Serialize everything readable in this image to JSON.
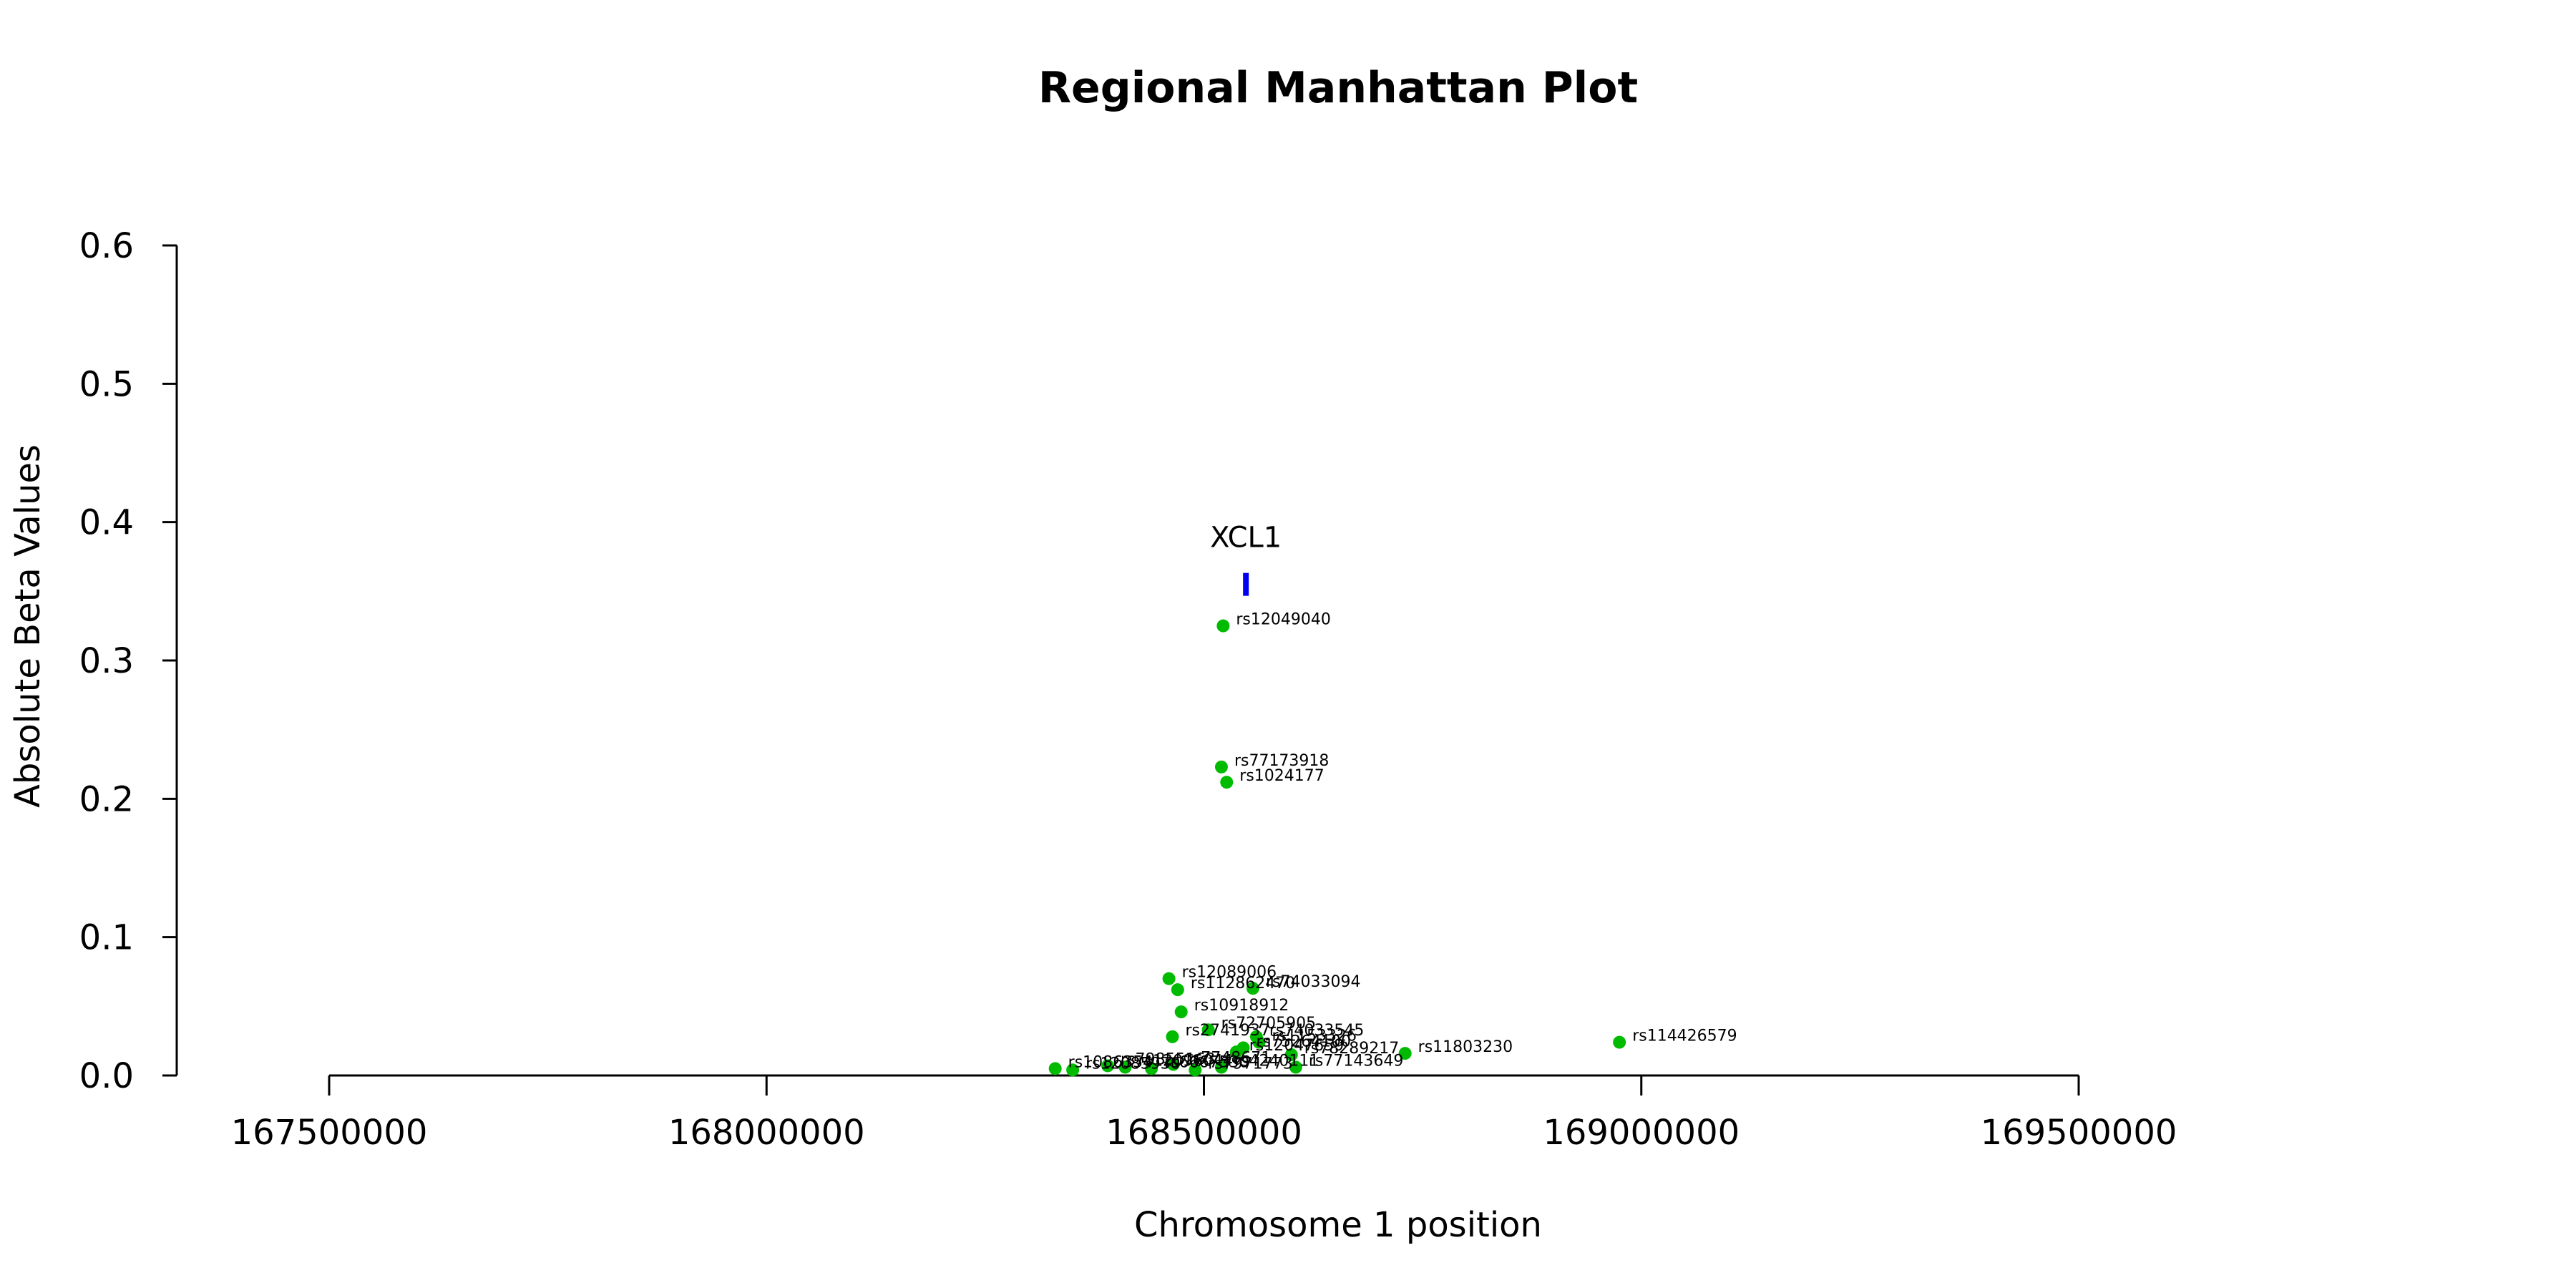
{
  "chart_data": {
    "type": "scatter",
    "title": "Regional Manhattan Plot",
    "xlabel": "Chromosome 1 position",
    "ylabel": "Absolute Beta Values",
    "xlim": [
      167500000,
      169500000
    ],
    "ylim": [
      0,
      0.6
    ],
    "xticks": [
      167500000,
      168000000,
      168500000,
      169000000,
      169500000
    ],
    "yticks": [
      0.0,
      0.1,
      0.2,
      0.3,
      0.4,
      0.5,
      0.6
    ],
    "point_color": "#00BB00",
    "gene_color": "#0000EE",
    "gene": {
      "name": "XCL1",
      "start": 168545000,
      "end": 168551000,
      "y": 0.355
    },
    "points": [
      {
        "x": 168522000,
        "y": 0.325,
        "label": "rs12049040"
      },
      {
        "x": 168520000,
        "y": 0.223,
        "label": "rs77173918"
      },
      {
        "x": 168526000,
        "y": 0.212,
        "label": "rs1024177"
      },
      {
        "x": 168460000,
        "y": 0.07,
        "label": "rs12089006"
      },
      {
        "x": 168470000,
        "y": 0.062,
        "label": "rs112862470"
      },
      {
        "x": 168556000,
        "y": 0.063,
        "label": "rs74033094"
      },
      {
        "x": 168474000,
        "y": 0.046,
        "label": "rs10918912"
      },
      {
        "x": 168464000,
        "y": 0.028,
        "label": "rs2741937"
      },
      {
        "x": 168505000,
        "y": 0.033,
        "label": "rs72705905"
      },
      {
        "x": 168560000,
        "y": 0.028,
        "label": "rs74033545"
      },
      {
        "x": 168563000,
        "y": 0.024,
        "label": "rs1153326"
      },
      {
        "x": 168545000,
        "y": 0.02,
        "label": "rs75264100"
      },
      {
        "x": 168537000,
        "y": 0.017,
        "label": "rs12047659"
      },
      {
        "x": 168600000,
        "y": 0.015,
        "label": "rs78289217"
      },
      {
        "x": 168730000,
        "y": 0.016,
        "label": "rs11803230"
      },
      {
        "x": 168975000,
        "y": 0.024,
        "label": "rs114426579"
      },
      {
        "x": 168605000,
        "y": 0.006,
        "label": "rs77143649"
      },
      {
        "x": 168330000,
        "y": 0.005,
        "label": "rs1086354"
      },
      {
        "x": 168350000,
        "y": 0.004,
        "label": "rs12085930"
      },
      {
        "x": 168390000,
        "y": 0.007,
        "label": "rs79855163"
      },
      {
        "x": 168410000,
        "y": 0.006,
        "label": "rs12096044"
      },
      {
        "x": 168440000,
        "y": 0.005,
        "label": "rs6667530"
      },
      {
        "x": 168490000,
        "y": 0.004,
        "label": "rs7971773"
      },
      {
        "x": 168520000,
        "y": 0.006,
        "label": "rs4240111"
      },
      {
        "x": 168465000,
        "y": 0.008,
        "label": "rs7748671"
      }
    ]
  }
}
